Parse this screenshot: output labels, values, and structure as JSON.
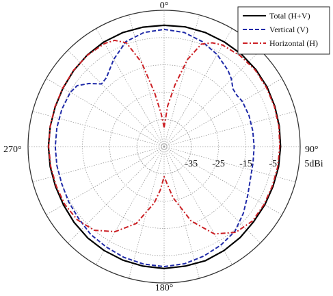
{
  "chart_data": {
    "type": "polar-line",
    "rmin": -45,
    "rmax": 5,
    "radial_ticks": [
      -35,
      -25,
      -15,
      -5
    ],
    "radial_tick_labels": [
      "-35",
      "-25",
      "-15",
      "-5"
    ],
    "radial_unit_label": "5dBi",
    "angle_labels": [
      {
        "deg": 0,
        "text": "0°"
      },
      {
        "deg": 90,
        "text": "90°"
      },
      {
        "deg": 180,
        "text": "180°"
      },
      {
        "deg": 270,
        "text": "270°"
      }
    ],
    "spoke_step_deg": 15,
    "grid": true,
    "legend_position": "top-right",
    "series": [
      {
        "name": "Total (H+V)",
        "color": "#000000",
        "style": "solid",
        "angles": [
          0,
          10,
          20,
          30,
          40,
          50,
          60,
          70,
          80,
          90,
          100,
          110,
          120,
          130,
          140,
          150,
          160,
          170,
          180,
          190,
          200,
          210,
          220,
          230,
          240,
          250,
          260,
          270,
          280,
          290,
          300,
          310,
          320,
          330,
          340,
          350
        ],
        "values": [
          -0.5,
          -0.4,
          -0.5,
          -0.7,
          -0.8,
          -1,
          -1.3,
          -1.7,
          -2,
          -2.2,
          -2.3,
          -2.4,
          -2.3,
          -2.1,
          -1.5,
          -1,
          -0.5,
          -0.5,
          -0.3,
          -0.5,
          -0.7,
          -1,
          -1.3,
          -1.8,
          -2.3,
          -2.5,
          -2.5,
          -2.5,
          -2.5,
          -2.4,
          -2.1,
          -1.6,
          -1.1,
          -0.7,
          -0.5,
          -0.5
        ]
      },
      {
        "name": "Vertical (V)",
        "color": "#1f2aa8",
        "style": "dashed",
        "angles": [
          0,
          10,
          20,
          30,
          40,
          45,
          50,
          55,
          60,
          70,
          80,
          90,
          100,
          110,
          120,
          130,
          140,
          150,
          160,
          170,
          180,
          190,
          200,
          210,
          220,
          230,
          240,
          250,
          260,
          270,
          280,
          290,
          300,
          305,
          310,
          315,
          320,
          330,
          340,
          350
        ],
        "values": [
          -2,
          -2.5,
          -4,
          -6,
          -8.5,
          -10,
          -12,
          -12.3,
          -11.8,
          -11.8,
          -11.9,
          -11.9,
          -11.8,
          -11.2,
          -9.5,
          -7,
          -4.5,
          -3.3,
          -2.3,
          -1.4,
          -1,
          -1.3,
          -1.8,
          -2.5,
          -3,
          -4,
          -4.5,
          -5,
          -5,
          -5,
          -5,
          -5,
          -5.2,
          -6,
          -9,
          -12.5,
          -12,
          -8,
          -4,
          -2.5
        ]
      },
      {
        "name": "Horizontal (H)",
        "color": "#cc1f24",
        "style": "dashdot",
        "angles": [
          0,
          5,
          10,
          15,
          20,
          25,
          30,
          40,
          50,
          60,
          70,
          80,
          90,
          100,
          110,
          120,
          130,
          140,
          150,
          160,
          170,
          175,
          180,
          185,
          190,
          200,
          210,
          220,
          230,
          240,
          250,
          260,
          270,
          280,
          290,
          300,
          310,
          320,
          330,
          335,
          340,
          345,
          350,
          355
        ],
        "values": [
          -38,
          -30,
          -22,
          -12,
          -5,
          -3,
          -2,
          -1.5,
          -1.3,
          -1.6,
          -1.9,
          -2.2,
          -2.5,
          -2.6,
          -2.7,
          -2.6,
          -2.6,
          -4,
          -8,
          -16,
          -26,
          -31,
          -34,
          -29,
          -24,
          -15,
          -9,
          -5,
          -3.3,
          -2.8,
          -2.8,
          -2.7,
          -2.6,
          -2.5,
          -2.3,
          -2,
          -1.5,
          -1.2,
          -1.3,
          -2,
          -4.5,
          -13,
          -25,
          -33
        ]
      }
    ]
  }
}
